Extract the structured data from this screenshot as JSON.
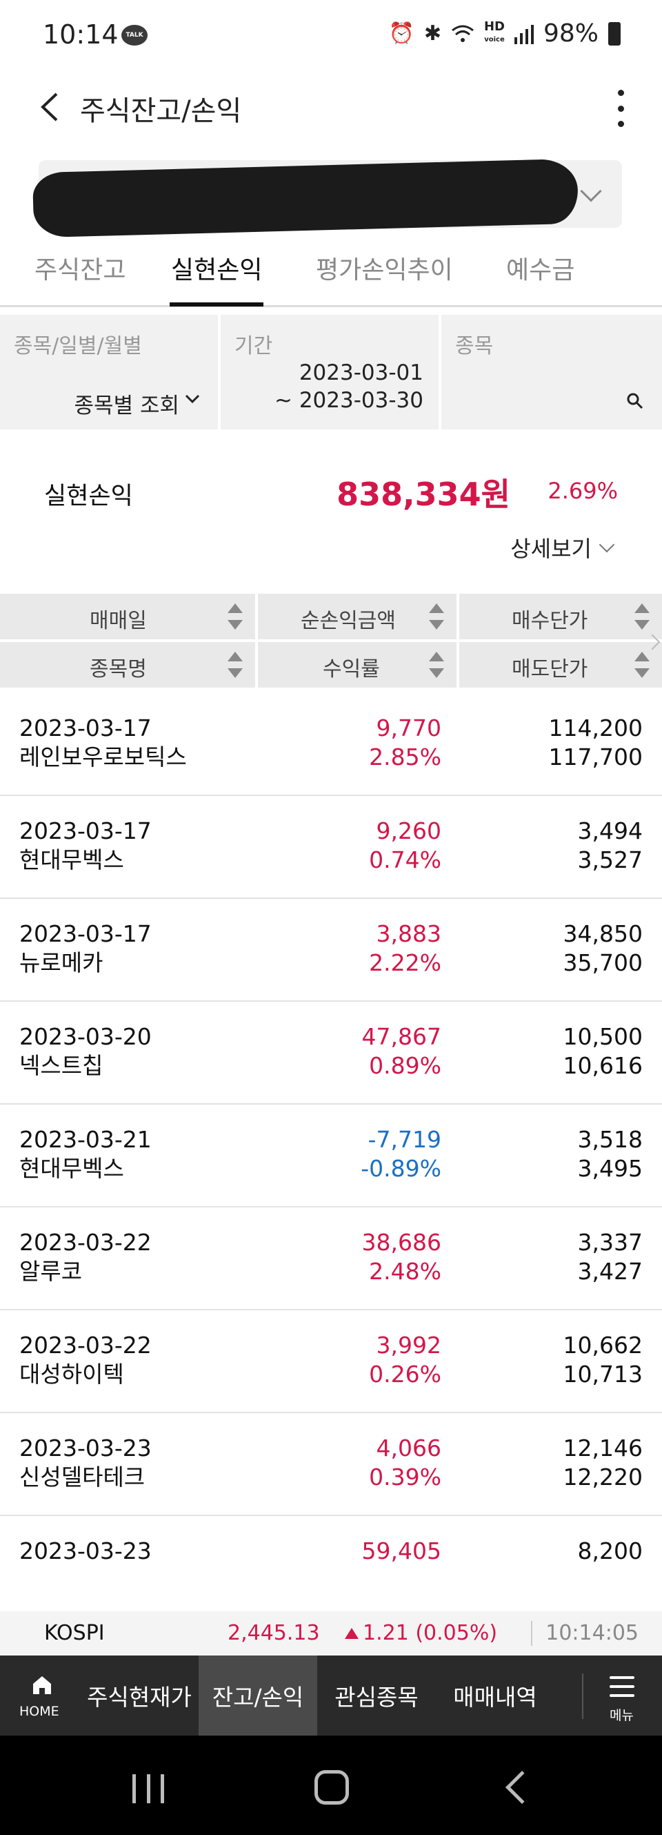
{
  "status": {
    "time": "10:14",
    "talk": "TALK",
    "hd": "HD",
    "hd_sub": "voice",
    "battery": "98%"
  },
  "header": {
    "title": "주식잔고/손익"
  },
  "tabs": [
    {
      "label": "주식잔고"
    },
    {
      "label": "실현손익"
    },
    {
      "label": "평가손익추이"
    },
    {
      "label": "예수금"
    }
  ],
  "filter": {
    "type_label": "종목/일별/월별",
    "type_value": "종목별 조회",
    "period_label": "기간",
    "period_start": "2023-03-01",
    "period_end": "~ 2023-03-30",
    "stock_label": "종목"
  },
  "summary": {
    "label": "실현손익",
    "value": "838,334원",
    "rate": "2.69%",
    "detail": "상세보기"
  },
  "columns": {
    "trade_date": "매매일",
    "net_profit": "순손익금액",
    "buy_price": "매수단가",
    "stock_name": "종목명",
    "return_rate": "수익률",
    "sell_price": "매도단가"
  },
  "rows": [
    {
      "date": "2023-03-17",
      "name": "레인보우로보틱스",
      "profit": "9,770",
      "rate": "2.85%",
      "buy": "114,200",
      "sell": "117,700"
    },
    {
      "date": "2023-03-17",
      "name": "현대무벡스",
      "profit": "9,260",
      "rate": "0.74%",
      "buy": "3,494",
      "sell": "3,527"
    },
    {
      "date": "2023-03-17",
      "name": "뉴로메카",
      "profit": "3,883",
      "rate": "2.22%",
      "buy": "34,850",
      "sell": "35,700"
    },
    {
      "date": "2023-03-20",
      "name": "넥스트칩",
      "profit": "47,867",
      "rate": "0.89%",
      "buy": "10,500",
      "sell": "10,616"
    },
    {
      "date": "2023-03-21",
      "name": "현대무벡스",
      "profit": "-7,719",
      "rate": "-0.89%",
      "buy": "3,518",
      "sell": "3,495"
    },
    {
      "date": "2023-03-22",
      "name": "알루코",
      "profit": "38,686",
      "rate": "2.48%",
      "buy": "3,337",
      "sell": "3,427"
    },
    {
      "date": "2023-03-22",
      "name": "대성하이텍",
      "profit": "3,992",
      "rate": "0.26%",
      "buy": "10,662",
      "sell": "10,713"
    },
    {
      "date": "2023-03-23",
      "name": "신성델타테크",
      "profit": "4,066",
      "rate": "0.39%",
      "buy": "12,146",
      "sell": "12,220"
    },
    {
      "date": "2023-03-23",
      "name": "",
      "profit": "59,405",
      "rate": "",
      "buy": "8,200",
      "sell": ""
    }
  ],
  "ticker": {
    "index": "KOSPI",
    "value": "2,445.13",
    "change": "1.21 (0.05%)",
    "time": "10:14:05"
  },
  "bottom_nav": {
    "home": "HOME",
    "items": [
      {
        "label": "주식현재가"
      },
      {
        "label": "잔고/손익"
      },
      {
        "label": "관심종목"
      },
      {
        "label": "매매내역"
      }
    ],
    "menu": "메뉴"
  },
  "colors": {
    "positive": "#d3174a",
    "negative": "#1a6fc4",
    "nav_bg": "#2a2a2a"
  }
}
